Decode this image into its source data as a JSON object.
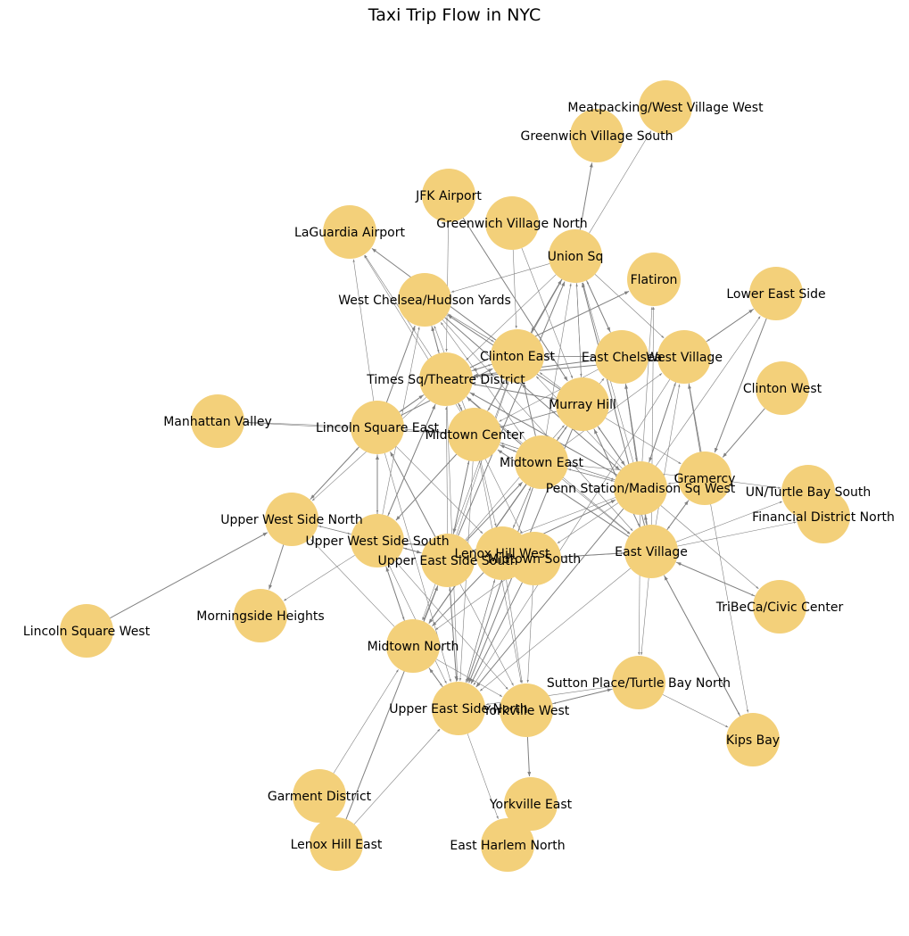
{
  "title": "Taxi Trip Flow in NYC",
  "colors": {
    "node": "#f3d07a",
    "edge": "#808080",
    "label": "#000000",
    "background": "#ffffff"
  },
  "nodes": [
    "Meatpacking/West Village West",
    "Greenwich Village South",
    "JFK Airport",
    "Greenwich Village North",
    "LaGuardia Airport",
    "Union Sq",
    "Flatiron",
    "Lower East Side",
    "West Chelsea/Hudson Yards",
    "Clinton East",
    "East Chelsea",
    "West Village",
    "Times Sq/Theatre District",
    "Clinton West",
    "Murray Hill",
    "Manhattan Valley",
    "Lincoln Square East",
    "Midtown Center",
    "Midtown East",
    "Gramercy",
    "Penn Station/Madison Sq West",
    "UN/Turtle Bay South",
    "Upper West Side North",
    "Financial District North",
    "Upper West Side South",
    "Lenox Hill West",
    "Upper East Side South",
    "Midtown South",
    "East Village",
    "TriBeCa/Civic Center",
    "Lincoln Square West",
    "Morningside Heights",
    "Midtown North",
    "Sutton Place/Turtle Bay North",
    "Upper East Side North",
    "Yorkville West",
    "Kips Bay",
    "Garment District",
    "Yorkville East",
    "Lenox Hill East",
    "East Harlem North"
  ],
  "edges": [
    [
      "Union Sq",
      "Greenwich Village South"
    ],
    [
      "Union Sq",
      "Meatpacking/West Village West"
    ],
    [
      "Union Sq",
      "West Chelsea/Hudson Yards"
    ],
    [
      "Union Sq",
      "Clinton East"
    ],
    [
      "Union Sq",
      "Times Sq/Theatre District"
    ],
    [
      "Union Sq",
      "Murray Hill"
    ],
    [
      "Union Sq",
      "East Chelsea"
    ],
    [
      "Union Sq",
      "Midtown Center"
    ],
    [
      "Union Sq",
      "West Village"
    ],
    [
      "Clinton East",
      "Union Sq"
    ],
    [
      "Murray Hill",
      "Union Sq"
    ],
    [
      "Midtown East",
      "Union Sq"
    ],
    [
      "East Village",
      "Union Sq"
    ],
    [
      "Penn Station/Madison Sq West",
      "Union Sq"
    ],
    [
      "East Chelsea",
      "Union Sq"
    ],
    [
      "Upper East Side South",
      "Union Sq"
    ],
    [
      "Times Sq/Theatre District",
      "LaGuardia Airport"
    ],
    [
      "Midtown Center",
      "LaGuardia Airport"
    ],
    [
      "Clinton East",
      "LaGuardia Airport"
    ],
    [
      "Lincoln Square East",
      "LaGuardia Airport"
    ],
    [
      "JFK Airport",
      "Times Sq/Theatre District"
    ],
    [
      "JFK Airport",
      "Murray Hill"
    ],
    [
      "Greenwich Village North",
      "Clinton East"
    ],
    [
      "Greenwich Village North",
      "Murray Hill"
    ],
    [
      "Times Sq/Theatre District",
      "West Chelsea/Hudson Yards"
    ],
    [
      "Clinton East",
      "West Chelsea/Hudson Yards"
    ],
    [
      "Midtown Center",
      "West Chelsea/Hudson Yards"
    ],
    [
      "Murray Hill",
      "West Chelsea/Hudson Yards"
    ],
    [
      "Midtown East",
      "West Chelsea/Hudson Yards"
    ],
    [
      "Penn Station/Madison Sq West",
      "West Chelsea/Hudson Yards"
    ],
    [
      "Lincoln Square East",
      "West Chelsea/Hudson Yards"
    ],
    [
      "Upper West Side South",
      "West Chelsea/Hudson Yards"
    ],
    [
      "West Chelsea/Hudson Yards",
      "Times Sq/Theatre District"
    ],
    [
      "West Chelsea/Hudson Yards",
      "Penn Station/Madison Sq West"
    ],
    [
      "West Chelsea/Hudson Yards",
      "East Village"
    ],
    [
      "West Chelsea/Hudson Yards",
      "Clinton East"
    ],
    [
      "Times Sq/Theatre District",
      "Flatiron"
    ],
    [
      "East Village",
      "Flatiron"
    ],
    [
      "Penn Station/Madison Sq West",
      "Flatiron"
    ],
    [
      "West Village",
      "Lower East Side"
    ],
    [
      "Lower East Side",
      "West Village"
    ],
    [
      "Penn Station/Madison Sq West",
      "Lower East Side"
    ],
    [
      "Lower East Side",
      "Gramercy"
    ],
    [
      "Clinton East",
      "East Chelsea"
    ],
    [
      "Times Sq/Theatre District",
      "Clinton East"
    ],
    [
      "Clinton East",
      "Times Sq/Theatre District"
    ],
    [
      "Midtown Center",
      "Clinton East"
    ],
    [
      "Murray Hill",
      "Clinton East"
    ],
    [
      "Midtown East",
      "Clinton East"
    ],
    [
      "Penn Station/Madison Sq West",
      "Clinton East"
    ],
    [
      "Upper East Side South",
      "Clinton East"
    ],
    [
      "Lincoln Square East",
      "Clinton East"
    ],
    [
      "Clinton East",
      "Midtown North"
    ],
    [
      "West Village",
      "Clinton East"
    ],
    [
      "East Chelsea",
      "Times Sq/Theatre District"
    ],
    [
      "East Chelsea",
      "Penn Station/Madison Sq West"
    ],
    [
      "Murray Hill",
      "East Chelsea"
    ],
    [
      "Penn Station/Madison Sq West",
      "East Chelsea"
    ],
    [
      "East Village",
      "East Chelsea"
    ],
    [
      "East Chelsea",
      "Midtown Center"
    ],
    [
      "West Village",
      "Penn Station/Madison Sq West"
    ],
    [
      "Penn Station/Madison Sq West",
      "West Village"
    ],
    [
      "East Village",
      "West Village"
    ],
    [
      "West Village",
      "Times Sq/Theatre District"
    ],
    [
      "West Village",
      "Upper East Side North"
    ],
    [
      "Midtown East",
      "West Village"
    ],
    [
      "Gramercy",
      "West Village"
    ],
    [
      "West Village",
      "Kips Bay"
    ],
    [
      "Times Sq/Theatre District",
      "Lincoln Square East"
    ],
    [
      "Lincoln Square East",
      "Times Sq/Theatre District"
    ],
    [
      "Times Sq/Theatre District",
      "Midtown Center"
    ],
    [
      "Midtown Center",
      "Times Sq/Theatre District"
    ],
    [
      "Times Sq/Theatre District",
      "Murray Hill"
    ],
    [
      "Murray Hill",
      "Times Sq/Theatre District"
    ],
    [
      "Times Sq/Theatre District",
      "Penn Station/Madison Sq West"
    ],
    [
      "Penn Station/Madison Sq West",
      "Times Sq/Theatre District"
    ],
    [
      "Times Sq/Theatre District",
      "Upper West Side North"
    ],
    [
      "Times Sq/Theatre District",
      "Upper West Side South"
    ],
    [
      "Upper West Side South",
      "Times Sq/Theatre District"
    ],
    [
      "Times Sq/Theatre District",
      "Upper East Side North"
    ],
    [
      "Times Sq/Theatre District",
      "East Village"
    ],
    [
      "Midtown East",
      "Times Sq/Theatre District"
    ],
    [
      "Times Sq/Theatre District",
      "Midtown South"
    ],
    [
      "Upper East Side South",
      "Times Sq/Theatre District"
    ],
    [
      "Clinton West",
      "Gramercy"
    ],
    [
      "Murray Hill",
      "Midtown Center"
    ],
    [
      "Midtown Center",
      "Murray Hill"
    ],
    [
      "Murray Hill",
      "Penn Station/Madison Sq West"
    ],
    [
      "Penn Station/Madison Sq West",
      "Murray Hill"
    ],
    [
      "Murray Hill",
      "East Village"
    ],
    [
      "East Village",
      "Murray Hill"
    ],
    [
      "Murray Hill",
      "Midtown East"
    ],
    [
      "Midtown East",
      "Murray Hill"
    ],
    [
      "Murray Hill",
      "Upper East Side North"
    ],
    [
      "Murray Hill",
      "Gramercy"
    ],
    [
      "Upper East Side South",
      "Murray Hill"
    ],
    [
      "Murray Hill",
      "Midtown North"
    ],
    [
      "Manhattan Valley",
      "Midtown Center"
    ],
    [
      "Lincoln Square East",
      "Manhattan Valley"
    ],
    [
      "Lincoln Square East",
      "Upper West Side North"
    ],
    [
      "Upper West Side North",
      "Lincoln Square East"
    ],
    [
      "Lincoln Square East",
      "Upper West Side South"
    ],
    [
      "Upper West Side South",
      "Lincoln Square East"
    ],
    [
      "Lincoln Square East",
      "Upper East Side North"
    ],
    [
      "Lincoln Square East",
      "Lenox Hill West"
    ],
    [
      "Upper East Side South",
      "Lincoln Square East"
    ],
    [
      "Midtown Center",
      "Lincoln Square East"
    ],
    [
      "Midtown Center",
      "Midtown East"
    ],
    [
      "Midtown East",
      "Midtown Center"
    ],
    [
      "Midtown Center",
      "Penn Station/Madison Sq West"
    ],
    [
      "Penn Station/Madison Sq West",
      "Midtown Center"
    ],
    [
      "Midtown Center",
      "Upper East Side South"
    ],
    [
      "Upper East Side South",
      "Midtown Center"
    ],
    [
      "Midtown Center",
      "Upper East Side North"
    ],
    [
      "Midtown Center",
      "Upper West Side South"
    ],
    [
      "Midtown Center",
      "Lenox Hill West"
    ],
    [
      "Midtown Center",
      "Yorkville West"
    ],
    [
      "East Village",
      "Midtown Center"
    ],
    [
      "Midtown East",
      "Penn Station/Madison Sq West"
    ],
    [
      "Penn Station/Madison Sq West",
      "Midtown East"
    ],
    [
      "Midtown East",
      "Upper East Side North"
    ],
    [
      "Midtown East",
      "Lenox Hill West"
    ],
    [
      "Lenox Hill West",
      "Midtown East"
    ],
    [
      "Midtown East",
      "Midtown North"
    ],
    [
      "Midtown East",
      "East Village"
    ],
    [
      "Midtown East",
      "Gramercy"
    ],
    [
      "Upper East Side South",
      "Midtown East"
    ],
    [
      "Gramercy",
      "Penn Station/Madison Sq West"
    ],
    [
      "Gramercy",
      "East Village"
    ],
    [
      "East Village",
      "Gramercy"
    ],
    [
      "Gramercy",
      "UN/Turtle Bay South"
    ],
    [
      "Penn Station/Madison Sq West",
      "East Village"
    ],
    [
      "East Village",
      "Penn Station/Madison Sq West"
    ],
    [
      "Penn Station/Madison Sq West",
      "Upper East Side South"
    ],
    [
      "Penn Station/Madison Sq West",
      "Midtown South"
    ],
    [
      "Penn Station/Madison Sq West",
      "Upper East Side North"
    ],
    [
      "Penn Station/Madison Sq West",
      "Sutton Place/Turtle Bay North"
    ],
    [
      "Penn Station/Madison Sq West",
      "TriBeCa/Civic Center"
    ],
    [
      "Lenox Hill West",
      "Penn Station/Madison Sq West"
    ],
    [
      "East Village",
      "UN/Turtle Bay South"
    ],
    [
      "East Village",
      "Financial District North"
    ],
    [
      "Upper West Side North",
      "Morningside Heights"
    ],
    [
      "Upper West Side South",
      "Upper West Side North"
    ],
    [
      "Upper West Side North",
      "Upper West Side South"
    ],
    [
      "Lincoln Square West",
      "Upper West Side North"
    ],
    [
      "Midtown North",
      "Upper West Side North"
    ],
    [
      "Upper West Side South",
      "Morningside Heights"
    ],
    [
      "Upper West Side South",
      "Upper East Side South"
    ],
    [
      "Upper East Side South",
      "Upper West Side South"
    ],
    [
      "Upper West Side South",
      "Midtown North"
    ],
    [
      "Midtown North",
      "Upper West Side South"
    ],
    [
      "Upper West Side South",
      "Upper East Side North"
    ],
    [
      "Upper West Side South",
      "Yorkville West"
    ],
    [
      "Upper West Side South",
      "Lenox Hill West"
    ],
    [
      "Lenox Hill West",
      "Upper East Side North"
    ],
    [
      "Upper East Side North",
      "Lenox Hill West"
    ],
    [
      "Lenox Hill West",
      "Midtown North"
    ],
    [
      "Lenox Hill West",
      "Yorkville West"
    ],
    [
      "Lenox Hill West",
      "Upper East Side South"
    ],
    [
      "Upper East Side South",
      "Upper East Side North"
    ],
    [
      "Upper East Side North",
      "Upper East Side South"
    ],
    [
      "Upper East Side South",
      "Midtown North"
    ],
    [
      "Upper East Side South",
      "Midtown South"
    ],
    [
      "Midtown South",
      "Upper East Side South"
    ],
    [
      "Upper East Side South",
      "Yorkville West"
    ],
    [
      "Midtown South",
      "Upper East Side North"
    ],
    [
      "Midtown South",
      "Midtown North"
    ],
    [
      "Midtown South",
      "East Village"
    ],
    [
      "East Village",
      "Midtown South"
    ],
    [
      "Midtown South",
      "Yorkville West"
    ],
    [
      "East Village",
      "TriBeCa/Civic Center"
    ],
    [
      "TriBeCa/Civic Center",
      "East Village"
    ],
    [
      "East Village",
      "Sutton Place/Turtle Bay North"
    ],
    [
      "East Village",
      "Kips Bay"
    ],
    [
      "Kips Bay",
      "East Village"
    ],
    [
      "East Village",
      "Upper East Side North"
    ],
    [
      "Midtown North",
      "Upper East Side North"
    ],
    [
      "Upper East Side North",
      "Midtown North"
    ],
    [
      "Midtown North",
      "Yorkville West"
    ],
    [
      "Sutton Place/Turtle Bay North",
      "Yorkville West"
    ],
    [
      "Yorkville West",
      "Sutton Place/Turtle Bay North"
    ],
    [
      "Sutton Place/Turtle Bay North",
      "Kips Bay"
    ],
    [
      "Sutton Place/Turtle Bay North",
      "Upper East Side North"
    ],
    [
      "Upper East Side North",
      "Yorkville West"
    ],
    [
      "Yorkville West",
      "Upper East Side North"
    ],
    [
      "Upper East Side North",
      "East Harlem North"
    ],
    [
      "Yorkville West",
      "Yorkville East"
    ],
    [
      "Garment District",
      "Midtown North"
    ],
    [
      "Lenox Hill East",
      "Upper East Side North"
    ],
    [
      "Lenox Hill East",
      "Upper East Side South"
    ]
  ]
}
